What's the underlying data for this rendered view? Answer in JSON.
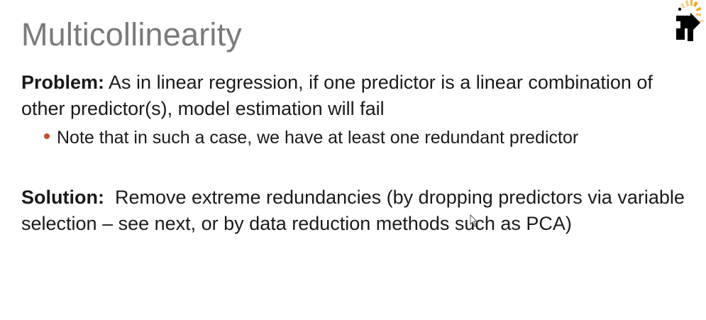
{
  "slide": {
    "title": "Multicollinearity",
    "problem": {
      "label": "Problem:",
      "text": " As in linear regression, if one predictor is a linear combination of other predictor(s), model estimation will fail"
    },
    "note": "Note that in such a case, we have at least one redundant predictor",
    "solution": {
      "label": "Solution:",
      "text": "  Remove extreme redundancies (by dropping predictors via variable selection – see next, or by data reduction methods such as PCA)"
    },
    "logo_icon": "starburst-arrow-logo",
    "cursor_icon": "mouse-pointer-icon"
  },
  "colors": {
    "title": "#7a7a7a",
    "body_text": "#1a1a1a",
    "bullet": "#c0522a",
    "logo_orange": "#f5a623",
    "logo_black": "#000000"
  }
}
